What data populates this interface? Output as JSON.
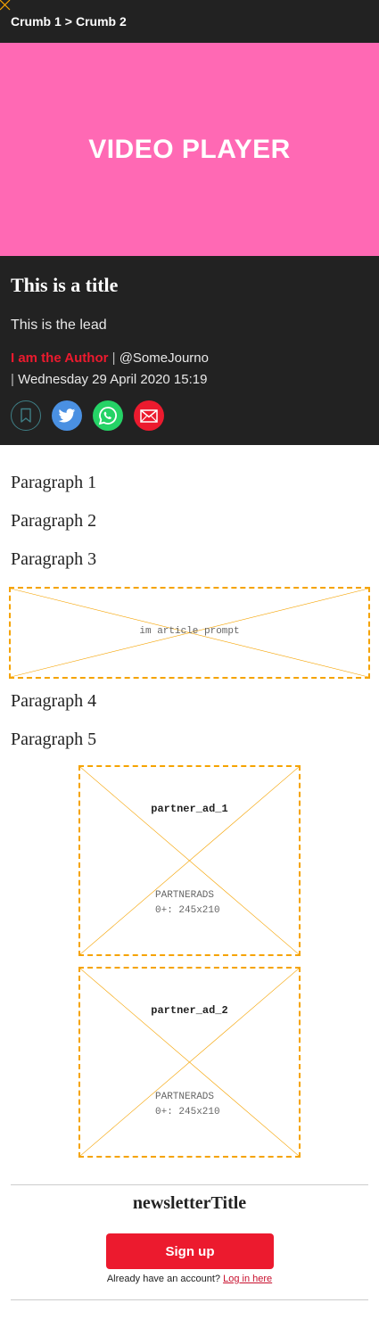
{
  "breadcrumb": {
    "items": [
      "Crumb 1",
      "Crumb 2"
    ],
    "separator": ">"
  },
  "video": {
    "label": "VIDEO PLAYER",
    "background": "#ff69b4"
  },
  "article": {
    "title": "This is a title",
    "lead": "This is the lead",
    "author": "I am the Author",
    "handle": "@SomeJourno",
    "date": "Wednesday 29 April 2020 15:19"
  },
  "share": {
    "icons": [
      "bookmark-icon",
      "twitter-icon",
      "whatsapp-icon",
      "email-icon"
    ]
  },
  "paragraphs": [
    "Paragraph 1",
    "Paragraph 2",
    "Paragraph 3",
    "Paragraph 4",
    "Paragraph 5"
  ],
  "placeholders": {
    "im_article_prompt": "im article prompt",
    "ads": [
      {
        "name": "partner_ad_1",
        "caption_1": "PARTNERADS",
        "caption_2": "0+: 245x210"
      },
      {
        "name": "partner_ad_2",
        "caption_1": "PARTNERADS",
        "caption_2": "0+: 245x210"
      }
    ]
  },
  "newsletter": {
    "title": "newsletterTitle",
    "signup_label": "Sign up",
    "login_prompt": "Already have an account?",
    "login_link": "Log in here"
  },
  "colors": {
    "accent": "#ec1a2e",
    "dark": "#222222",
    "placeholder": "#f5a300"
  }
}
